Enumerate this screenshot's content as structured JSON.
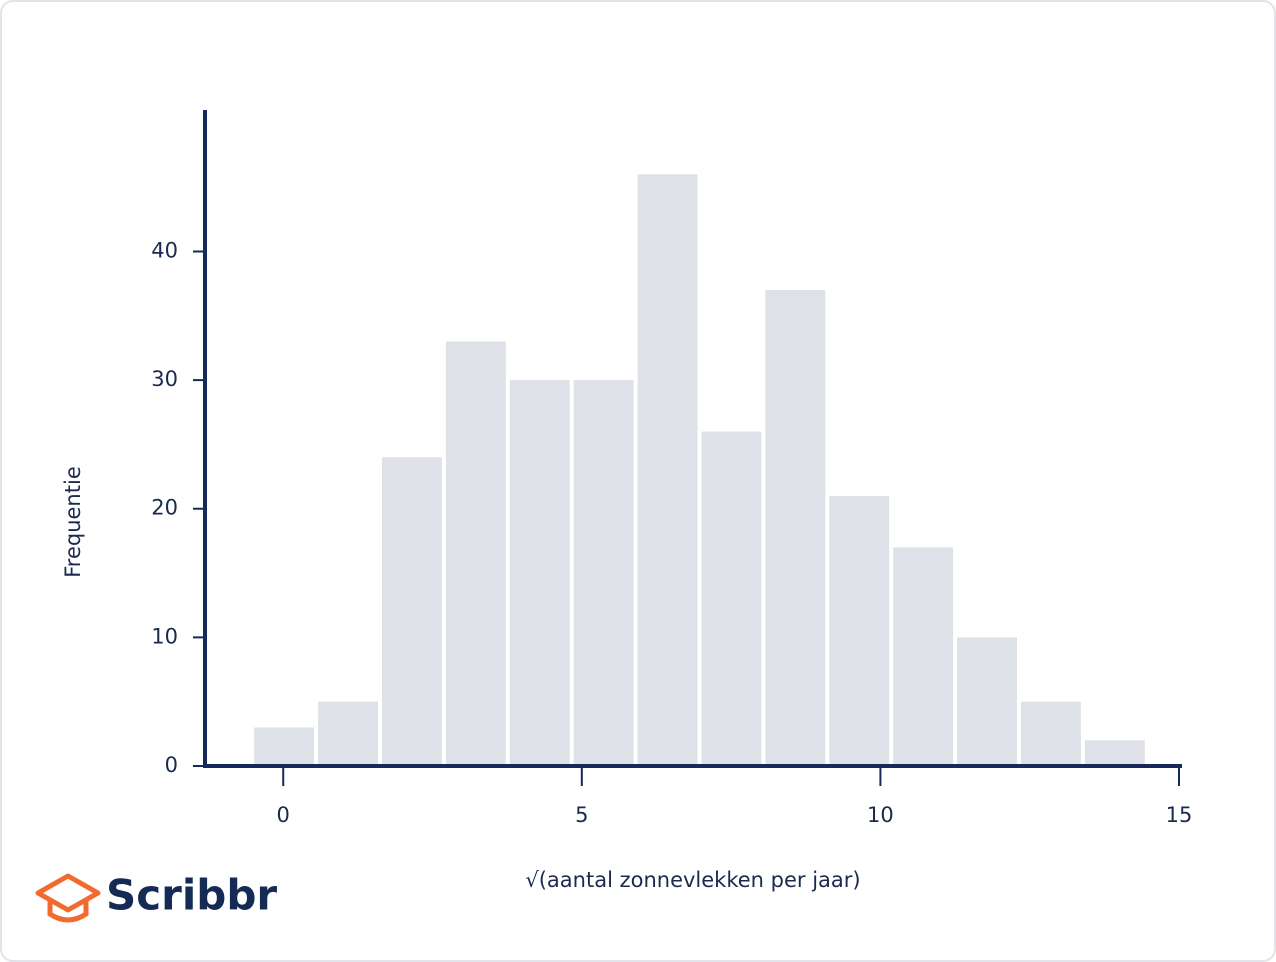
{
  "brand": "Scribbr",
  "chart_data": {
    "type": "histogram",
    "xlabel": "√(aantal zonnevlekken per jaar)",
    "ylabel": "Frequentie",
    "bins": [
      -0.52,
      0.55,
      1.62,
      2.69,
      3.76,
      4.83,
      5.9,
      6.97,
      8.04,
      9.11,
      10.18,
      11.25,
      12.32,
      13.39,
      14.46
    ],
    "values": [
      3,
      5,
      24,
      33,
      30,
      30,
      46,
      26,
      37,
      21,
      17,
      10,
      5,
      2
    ],
    "color": "#dfe1e8",
    "xlim": [
      -1.31,
      15.05
    ],
    "xticks": [
      0,
      5,
      10,
      15
    ],
    "ylim": [
      0,
      51
    ],
    "yticks": [
      0,
      10,
      20,
      30,
      40
    ],
    "grid": false
  }
}
